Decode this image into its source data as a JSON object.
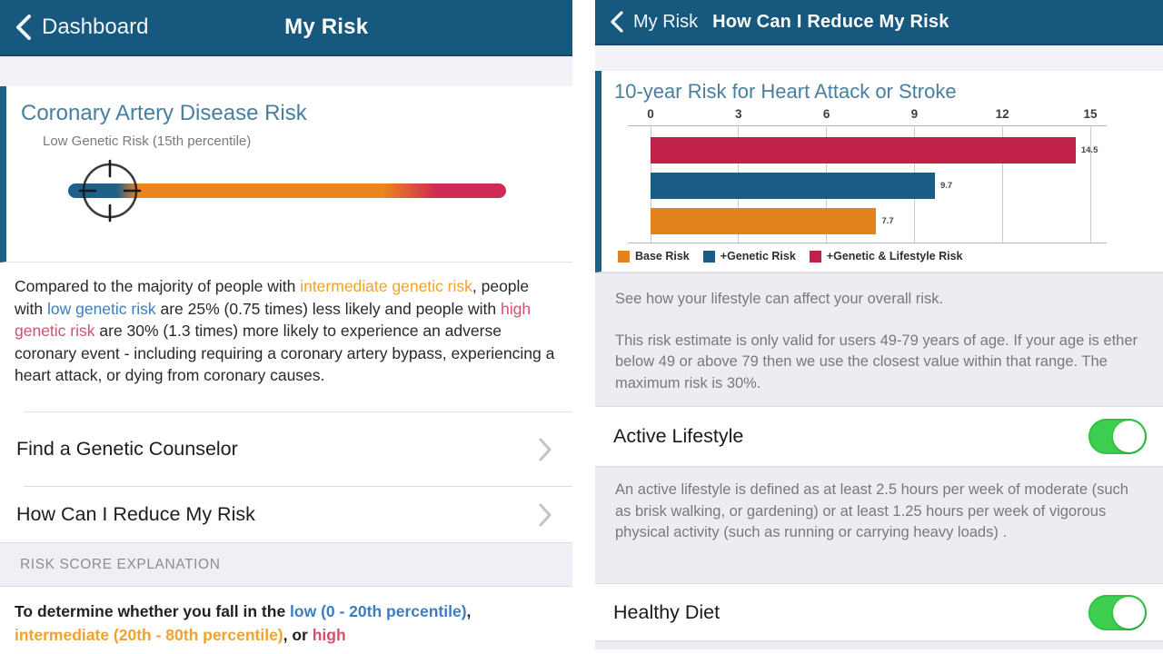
{
  "colors": {
    "header_bg": "#16587e",
    "heading_blue": "#47809f",
    "risk_low_blue": "#1d6089",
    "risk_intermediate_orange": "#ea8520",
    "risk_high_red": "#ce2c54",
    "em_blue": "#3b7ec0",
    "em_orange": "#efa232",
    "em_red": "#d4506c",
    "panel_gray": "#ecedf2",
    "toggle_green": "#3ecf50"
  },
  "left_screen": {
    "header": {
      "back_label": "Dashboard",
      "title": "My Risk"
    },
    "card": {
      "title": "Coronary Artery Disease Risk",
      "subtitle": "Low Genetic Risk (15th percentile)",
      "marker_percentile": 15,
      "gradient_segments": [
        "low",
        "intermediate",
        "high"
      ]
    },
    "paragraph": {
      "part1": "Compared to the majority of people with ",
      "em1": "intermediate genetic risk",
      "part2": ", people with ",
      "em2": "low genetic risk",
      "part3": " are 25% (0.75 times) less likely and people with ",
      "em3": "high genetic risk",
      "part4": " are 30% (1.3 times) more likely to experience an adverse coronary event - including requiring a coronary artery bypass, experiencing a heart attack, or dying from coronary causes."
    },
    "menu": [
      {
        "label": "Find a Genetic Counselor"
      },
      {
        "label": "How Can I Reduce My Risk"
      }
    ],
    "section_header": "RISK SCORE EXPLANATION",
    "explanation": {
      "part1": "To determine whether you fall in the ",
      "em1": "low (0 - 20th percentile)",
      "part2": ", ",
      "em2": "intermediate (20th - 80th percentile)",
      "part3": ", or ",
      "em3": "high"
    }
  },
  "right_screen": {
    "header": {
      "back_label": "My Risk",
      "title": "How Can I Reduce My Risk"
    },
    "chart": {
      "title": "10-year Risk for Heart Attack or Stroke",
      "max": 15,
      "ticks": [
        "0",
        "3",
        "6",
        "9",
        "12",
        "15"
      ],
      "bars": [
        {
          "name": "+Genetic & Lifestyle Risk",
          "value": 14.5,
          "label": "14.5",
          "color": "#bf2148"
        },
        {
          "name": "+Genetic Risk",
          "value": 9.7,
          "label": "9.7",
          "color": "#1b5c84"
        },
        {
          "name": "Base Risk",
          "value": 7.7,
          "label": "7.7",
          "color": "#e2831d"
        }
      ],
      "legend": [
        {
          "label": "Base Risk",
          "color": "#e2831d"
        },
        {
          "label": "+Genetic Risk",
          "color": "#1b5c84"
        },
        {
          "label": "+Genetic & Lifestyle Risk",
          "color": "#bf2148"
        }
      ]
    },
    "info_box": {
      "line1": "See how your lifestyle can affect your overall risk.",
      "line2": "This risk estimate is only valid for users 49-79 years of age. If your age is ether below 49 or above 79 then we use the closest value within that range. The maximum risk is 30%."
    },
    "toggles": [
      {
        "label": "Active Lifestyle",
        "on": true
      },
      {
        "label": "Healthy Diet",
        "on": true
      }
    ],
    "lifestyle_note": "An active lifestyle is defined as at least 2.5 hours per week of moderate (such as brisk walking, or gardening) or at least 1.25 hours per week of vigorous physical activity (such as running or carrying heavy loads) ."
  },
  "chart_data": {
    "type": "bar",
    "orientation": "horizontal",
    "title": "10-year Risk for Heart Attack or Stroke",
    "categories": [
      "+Genetic & Lifestyle Risk",
      "+Genetic Risk",
      "Base Risk"
    ],
    "values": [
      14.5,
      9.7,
      7.7
    ],
    "xlim": [
      0,
      15
    ],
    "xticks": [
      0,
      3,
      6,
      9,
      12,
      15
    ],
    "grid": true,
    "legend_position": "bottom",
    "legend": [
      "Base Risk",
      "+Genetic Risk",
      "+Genetic & Lifestyle Risk"
    ]
  }
}
